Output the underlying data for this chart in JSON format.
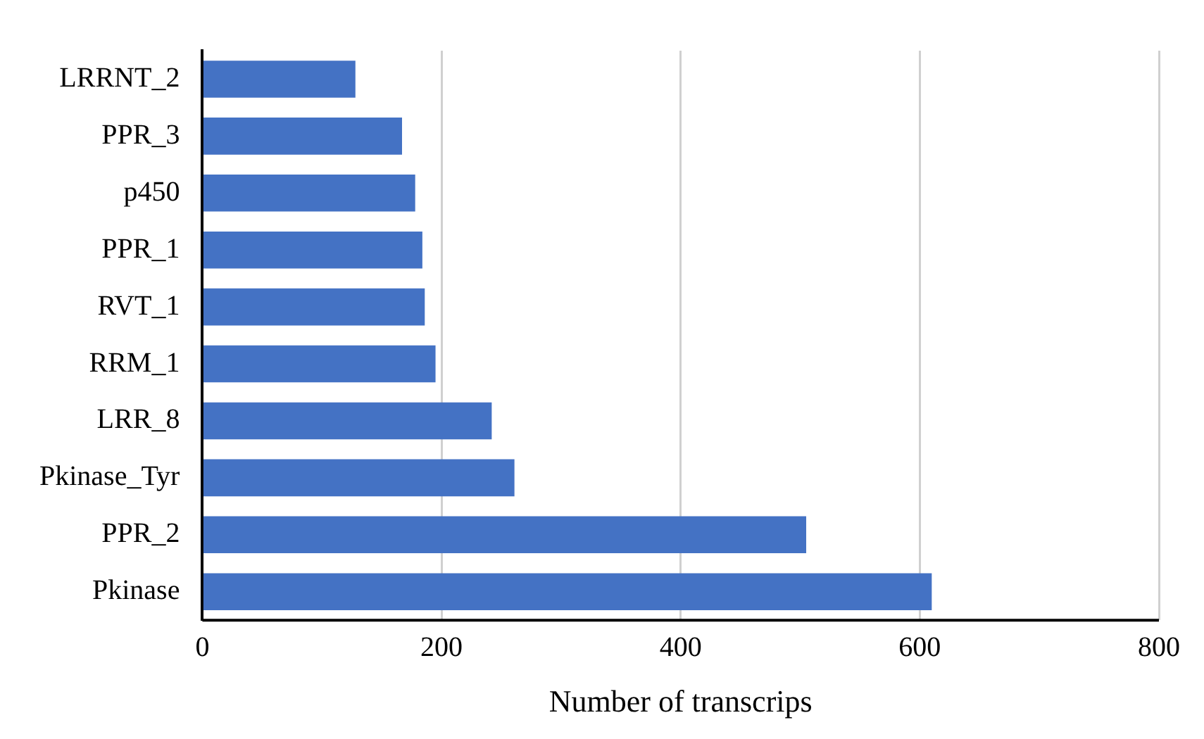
{
  "chart_data": {
    "type": "bar",
    "orientation": "horizontal",
    "xlabel": "Number of transcrips",
    "categories": [
      "LRRNT_2",
      "PPR_3",
      "p450",
      "PPR_1",
      "RVT_1",
      "RRM_1",
      "LRR_8",
      "Pkinase_Tyr",
      "PPR_2",
      "Pkinase"
    ],
    "values": [
      128,
      167,
      178,
      184,
      186,
      195,
      242,
      261,
      505,
      610
    ],
    "color": "#4472c4",
    "xlim": [
      0,
      800
    ],
    "xticks": [
      0,
      200,
      400,
      600,
      800
    ],
    "grid": "x",
    "legend": false
  }
}
